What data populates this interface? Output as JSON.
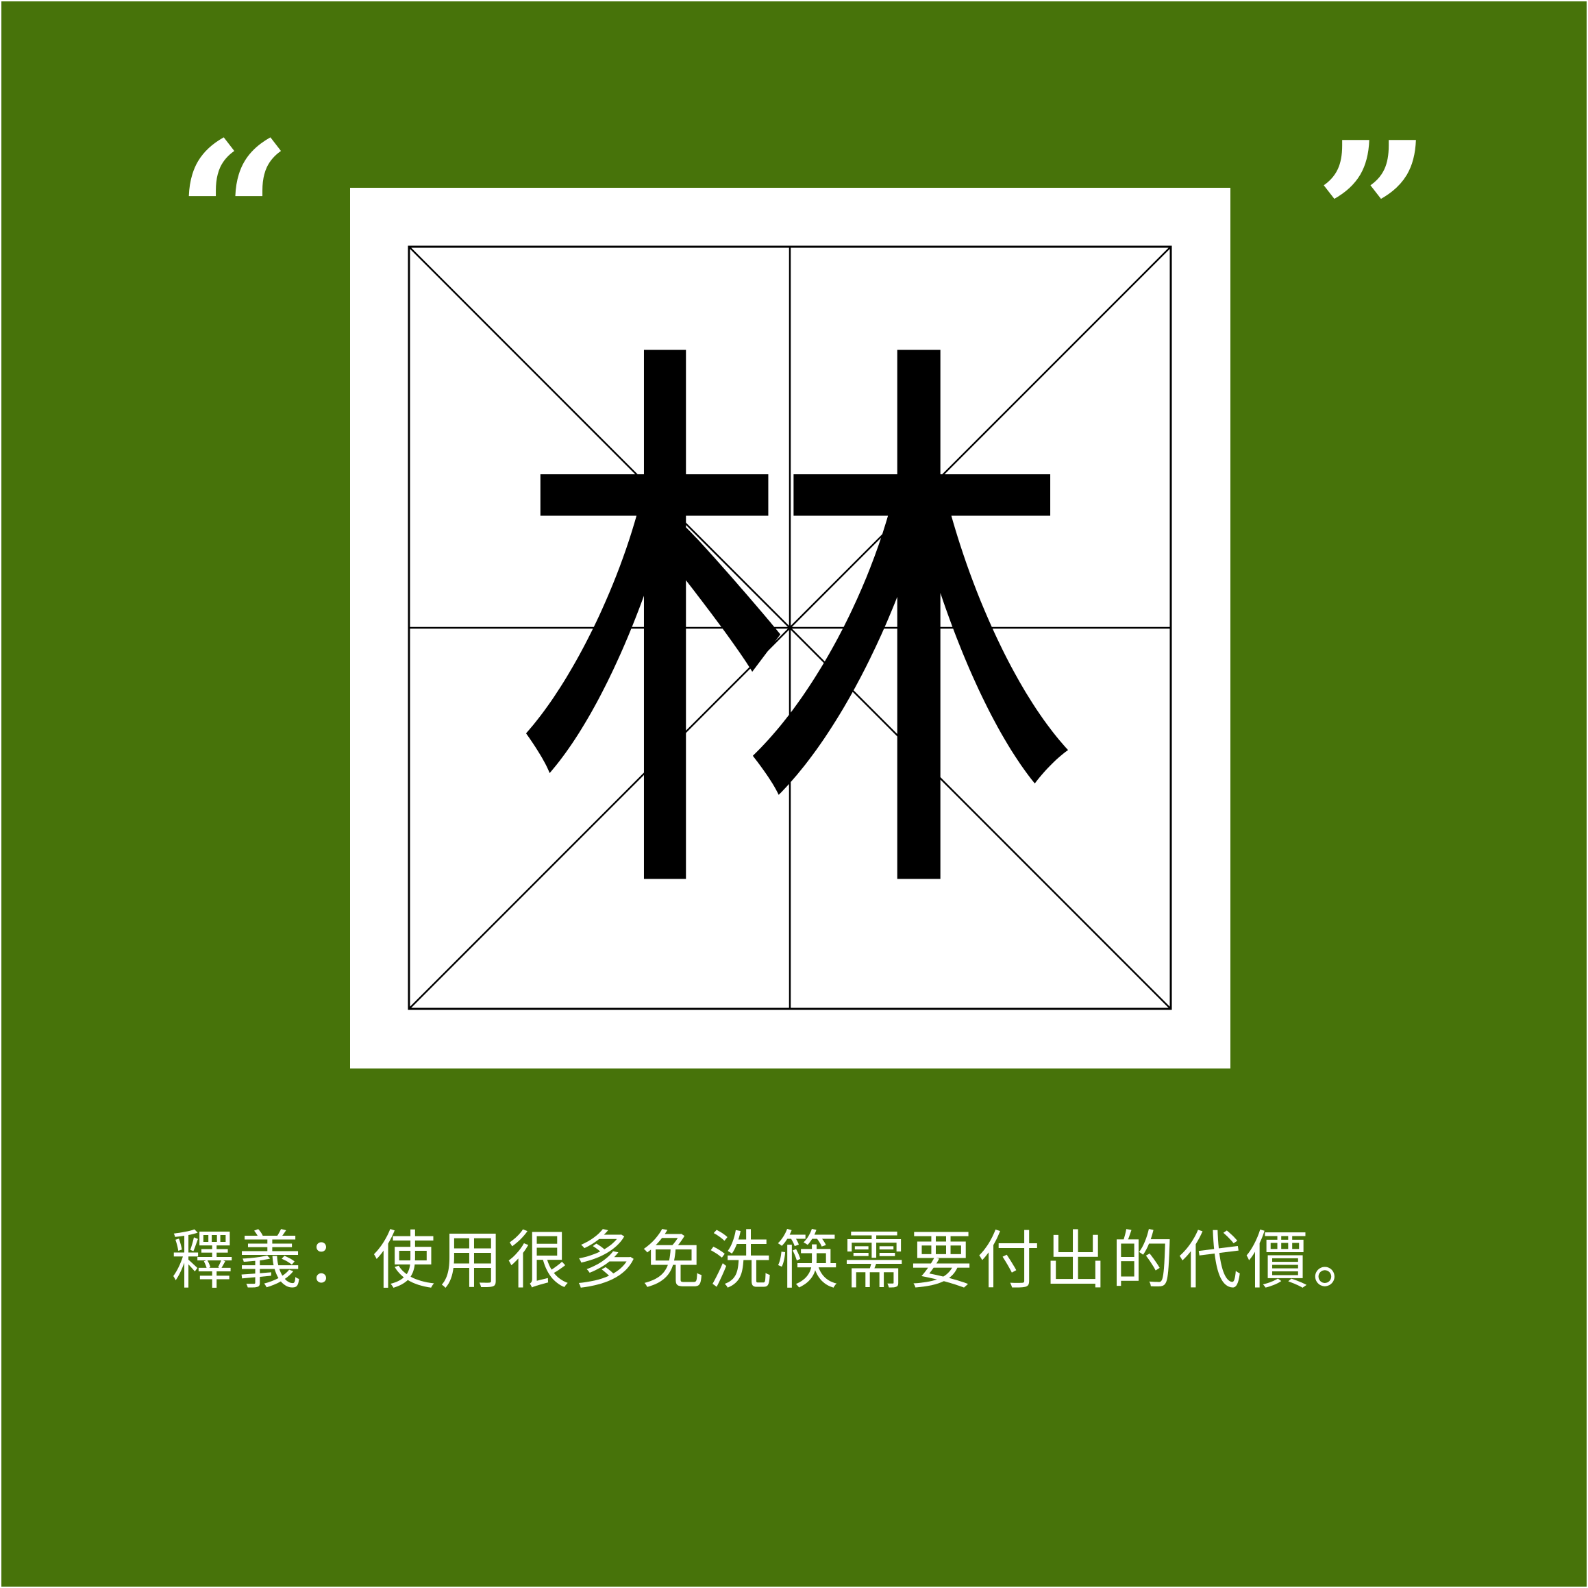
{
  "colors": {
    "background": "#47730a",
    "card": "#ffffff",
    "grid_line": "#000000",
    "text_light": "#ffffff",
    "glyph": "#000000"
  },
  "quote_open": "“",
  "quote_close": "”",
  "character": "林",
  "caption": "釋義：使用很多免洗筷需要付出的代價。"
}
